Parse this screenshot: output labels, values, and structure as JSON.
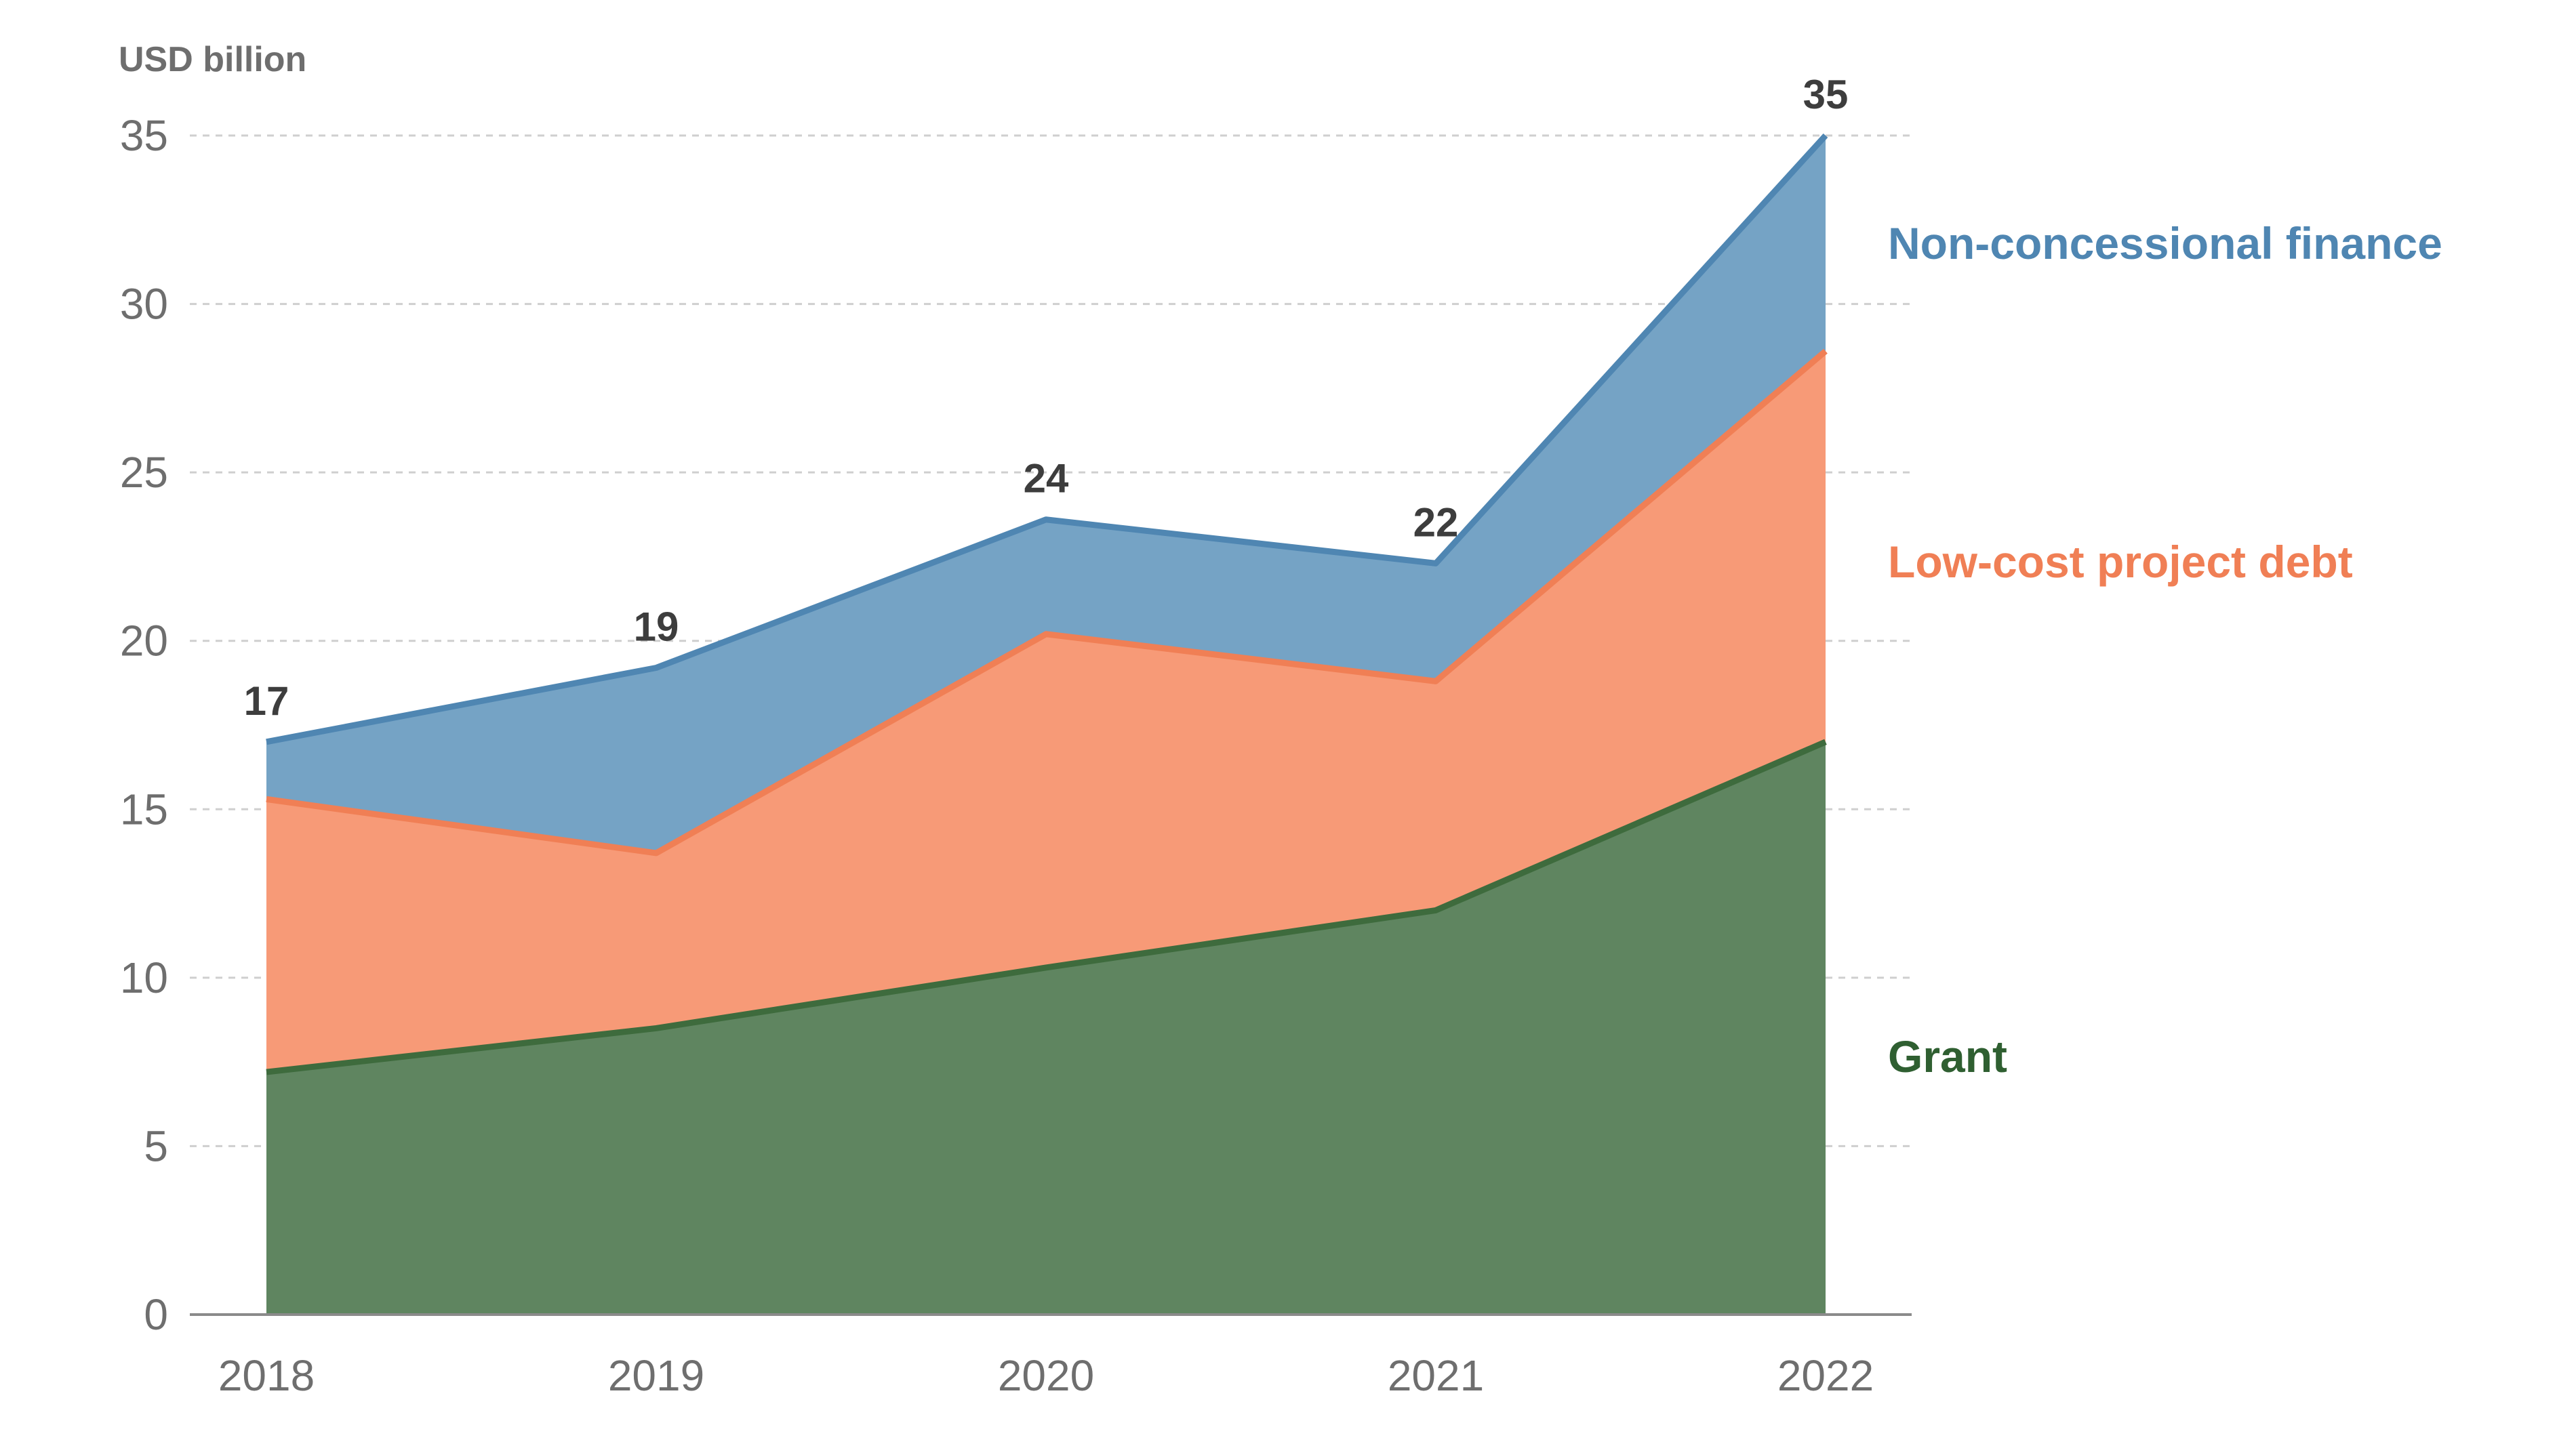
{
  "chart_data": {
    "type": "area",
    "stacked": true,
    "ylabel": "USD billion",
    "ylim": [
      0,
      35
    ],
    "y_ticks": [
      0,
      5,
      10,
      15,
      20,
      25,
      30,
      35
    ],
    "x": [
      "2018",
      "2019",
      "2020",
      "2021",
      "2022"
    ],
    "grid": true,
    "series": [
      {
        "name": "Grant",
        "values": [
          7.2,
          8.5,
          10.3,
          12.0,
          17.0
        ],
        "color": "#5f8560",
        "line_color": "#3e6b3d",
        "label_color": "#2f5f31"
      },
      {
        "name": "Low-cost project debt",
        "values": [
          8.1,
          5.2,
          9.9,
          6.8,
          11.6
        ],
        "color": "#f79a77",
        "line_color": "#f07f55",
        "label_color": "#f07f55"
      },
      {
        "name": "Non-concessional finance",
        "values": [
          1.7,
          5.5,
          3.4,
          3.5,
          6.4
        ],
        "color": "#75a3c5",
        "line_color": "#4f86b2",
        "label_color": "#4f86b2"
      }
    ],
    "totals": [
      "17",
      "19",
      "24",
      "22",
      "35"
    ],
    "legend_placement": "right"
  }
}
